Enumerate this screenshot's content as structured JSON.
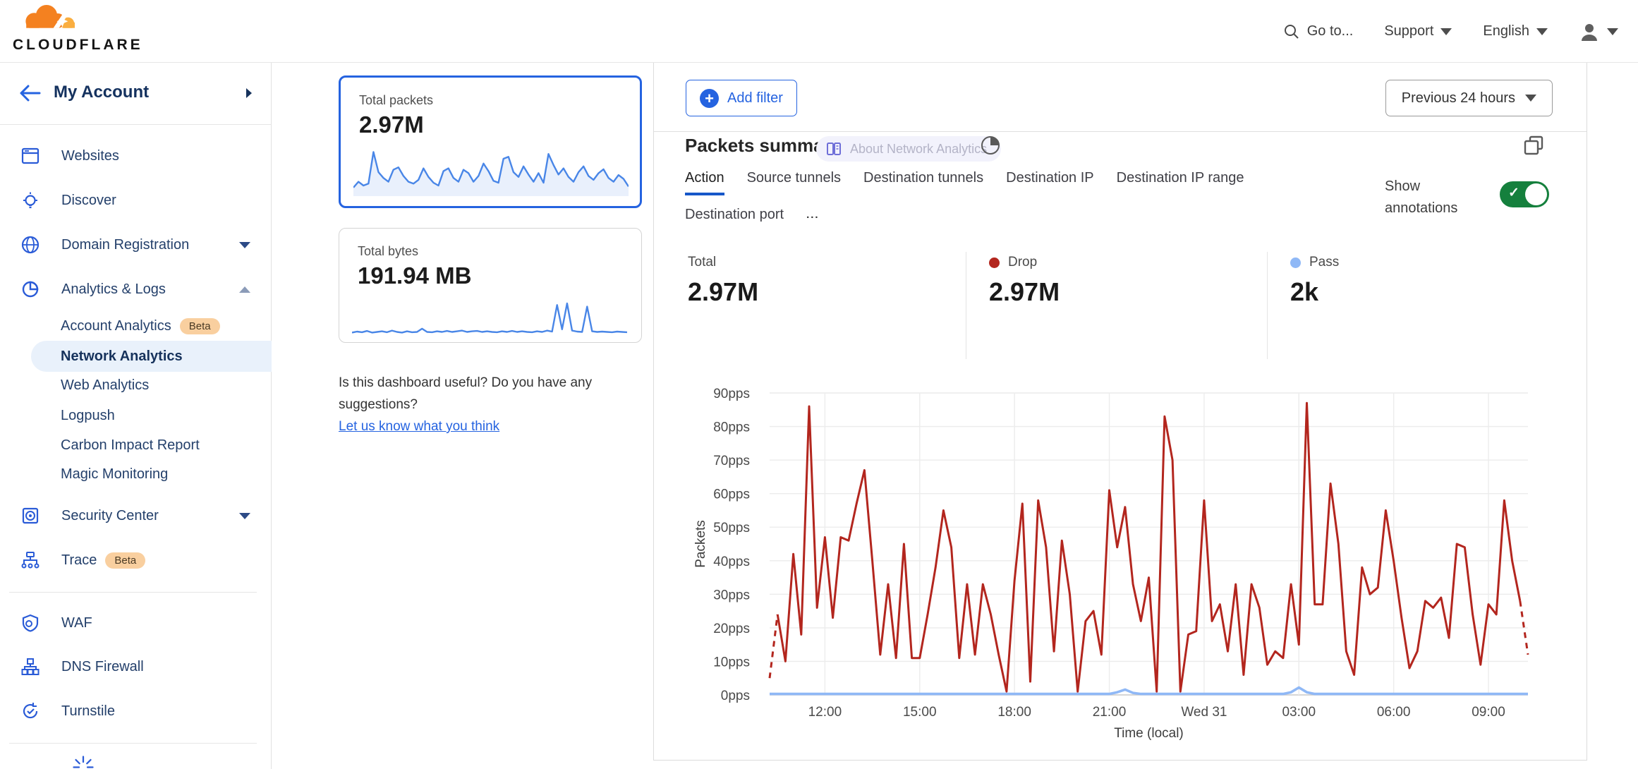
{
  "header": {
    "logo_text": "CLOUDFLARE",
    "goto_label": "Go to...",
    "support_label": "Support",
    "language_label": "English"
  },
  "sidebar": {
    "account_label": "My Account",
    "items": [
      {
        "label": "Websites"
      },
      {
        "label": "Discover"
      },
      {
        "label": "Domain Registration"
      },
      {
        "label": "Analytics & Logs"
      },
      {
        "label": "Account Analytics",
        "badge": "Beta"
      },
      {
        "label": "Network Analytics"
      },
      {
        "label": "Web Analytics"
      },
      {
        "label": "Logpush"
      },
      {
        "label": "Carbon Impact Report"
      },
      {
        "label": "Magic Monitoring"
      },
      {
        "label": "Security Center"
      },
      {
        "label": "Trace",
        "badge": "Beta"
      },
      {
        "label": "WAF"
      },
      {
        "label": "DNS Firewall"
      },
      {
        "label": "Turnstile"
      }
    ]
  },
  "cards": {
    "packets": {
      "title": "Total packets",
      "value": "2.97M"
    },
    "bytes": {
      "title": "Total bytes",
      "value": "191.94 MB"
    }
  },
  "feedback": {
    "line1": "Is this dashboard useful? Do you have any",
    "line2": "suggestions?",
    "link": "Let us know what you think"
  },
  "toolbar": {
    "add_filter_label": "Add filter",
    "time_range_label": "Previous 24 hours"
  },
  "panel": {
    "title": "Packets summary",
    "badge": "About Network Analytics",
    "tabs": [
      "Action",
      "Source tunnels",
      "Destination tunnels",
      "Destination IP",
      "Destination IP range",
      "Destination port"
    ],
    "tabs_overflow": "...",
    "show_annotations": "Show annotations",
    "stats": [
      {
        "label": "Total",
        "value": "2.97M",
        "dot": null
      },
      {
        "label": "Drop",
        "value": "2.97M",
        "dot": "#b3261e"
      },
      {
        "label": "Pass",
        "value": "2k",
        "dot": "#8fb8f6"
      }
    ]
  },
  "colors": {
    "accent": "#2563e0",
    "drop_red": "#b3261e",
    "pass_blue": "#8fb8f6",
    "toggle_green": "#15803d",
    "spark_blue": "#4986e7"
  },
  "chart_data": [
    {
      "name": "total-packets-sparkline",
      "type": "line",
      "color": "#4986e7",
      "fill": true,
      "values": [
        18,
        30,
        22,
        26,
        92,
        50,
        38,
        30,
        55,
        60,
        42,
        30,
        26,
        34,
        58,
        40,
        28,
        22,
        52,
        58,
        38,
        30,
        55,
        48,
        30,
        42,
        68,
        52,
        32,
        28,
        78,
        82,
        50,
        40,
        62,
        45,
        30,
        48,
        28,
        88,
        65,
        45,
        58,
        40,
        30,
        50,
        62,
        42,
        34,
        48,
        56,
        38,
        30,
        44,
        36,
        20
      ]
    },
    {
      "name": "total-bytes-sparkline",
      "type": "line",
      "color": "#4986e7",
      "fill": false,
      "values": [
        10,
        13,
        11,
        15,
        10,
        12,
        14,
        11,
        16,
        12,
        10,
        14,
        11,
        12,
        22,
        12,
        11,
        14,
        12,
        15,
        12,
        14,
        16,
        12,
        14,
        15,
        12,
        14,
        12,
        11,
        14,
        12,
        15,
        12,
        14,
        12,
        11,
        14,
        12,
        16,
        13,
        95,
        20,
        100,
        16,
        13,
        12,
        90,
        14,
        12,
        13,
        12,
        11,
        13,
        12,
        11
      ]
    },
    {
      "name": "packets-summary",
      "type": "line",
      "title": "Packets summary",
      "xlabel": "Time (local)",
      "ylabel": "Packets",
      "ylim": [
        0,
        90
      ],
      "y_tick_step": 10,
      "y_unit": "pps",
      "grid": true,
      "x_ticks": [
        {
          "label": "12:00",
          "index": 7
        },
        {
          "label": "15:00",
          "index": 19
        },
        {
          "label": "18:00",
          "index": 31
        },
        {
          "label": "21:00",
          "index": 43
        },
        {
          "label": "Wed 31",
          "index": 55
        },
        {
          "label": "03:00",
          "index": 67
        },
        {
          "label": "06:00",
          "index": 79
        },
        {
          "label": "09:00",
          "index": 91
        }
      ],
      "series": [
        {
          "name": "Drop",
          "color": "#b3261e",
          "dashed_first_segment": true,
          "dashed_last_segment": true,
          "values": [
            5,
            24,
            10,
            42,
            18,
            86,
            26,
            47,
            23,
            47,
            46,
            57,
            67,
            40,
            12,
            33,
            11,
            45,
            11,
            11,
            24,
            38,
            55,
            44,
            11,
            33,
            12,
            33,
            24,
            12,
            1,
            34,
            57,
            4,
            58,
            44,
            13,
            46,
            30,
            1,
            22,
            25,
            12,
            61,
            44,
            56,
            33,
            22,
            35,
            1,
            83,
            70,
            1,
            18,
            19,
            58,
            22,
            27,
            13,
            33,
            6,
            33,
            26,
            9,
            13,
            11,
            33,
            15,
            87,
            27,
            27,
            63,
            45,
            13,
            6,
            38,
            30,
            32,
            55,
            40,
            23,
            8,
            13,
            28,
            26,
            29,
            17,
            45,
            44,
            24,
            9,
            27,
            24,
            58,
            40,
            28,
            12
          ]
        },
        {
          "name": "Pass",
          "color": "#8fb8f6",
          "values": [
            0.3,
            0.3,
            0.3,
            0.3,
            0.3,
            0.3,
            0.3,
            0.3,
            0.3,
            0.3,
            0.3,
            0.3,
            0.3,
            0.3,
            0.3,
            0.3,
            0.3,
            0.3,
            0.3,
            0.3,
            0.3,
            0.3,
            0.3,
            0.3,
            0.3,
            0.3,
            0.3,
            0.3,
            0.3,
            0.3,
            0.3,
            0.3,
            0.3,
            0.3,
            0.3,
            0.3,
            0.3,
            0.3,
            0.3,
            0.3,
            0.3,
            0.3,
            0.3,
            0.3,
            0.8,
            1.6,
            0.6,
            0.3,
            0.3,
            0.3,
            0.3,
            0.3,
            0.3,
            0.3,
            0.3,
            0.3,
            0.3,
            0.3,
            0.3,
            0.3,
            0.3,
            0.3,
            0.3,
            0.3,
            0.3,
            0.3,
            0.8,
            2.2,
            0.8,
            0.3,
            0.3,
            0.3,
            0.3,
            0.3,
            0.3,
            0.3,
            0.3,
            0.3,
            0.3,
            0.3,
            0.3,
            0.3,
            0.3,
            0.3,
            0.3,
            0.3,
            0.3,
            0.3,
            0.3,
            0.3,
            0.3,
            0.3,
            0.3,
            0.3,
            0.3,
            0.3,
            0.3
          ]
        }
      ]
    }
  ]
}
